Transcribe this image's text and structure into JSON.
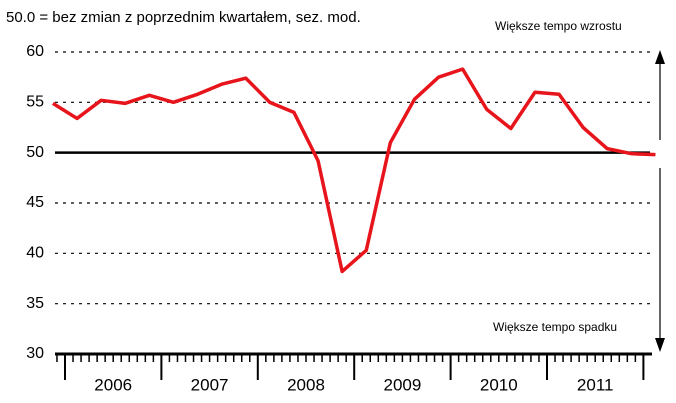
{
  "chart_data": {
    "type": "line",
    "title": "50.0 = bez zmian z poprzednim kwartałem, sez. mod.",
    "annotations": [
      "Większe tempo wzrostu",
      "Większe tempo spadku"
    ],
    "year_labels": [
      "2006",
      "2007",
      "2008",
      "2009",
      "2010",
      "2011"
    ],
    "categories": [
      null,
      null,
      null,
      null,
      null,
      null,
      null,
      null,
      null,
      null,
      null,
      null,
      null,
      null,
      null,
      null,
      null,
      null,
      null,
      null,
      null,
      null,
      null,
      null,
      null,
      null
    ],
    "series": [
      {
        "name": null,
        "color": "#e8141b",
        "values": [
          54.9,
          53.4,
          55.2,
          54.9,
          55.7,
          55.0,
          55.8,
          56.8,
          57.4,
          55.0,
          54.0,
          49.2,
          38.2,
          40.3,
          51.0,
          55.3,
          57.5,
          58.3,
          54.3,
          52.4,
          56.0,
          55.8,
          52.5,
          50.4,
          49.9,
          49.8
        ]
      }
    ],
    "ylim": [
      30,
      60
    ],
    "yticks": [
      30,
      35,
      40,
      45,
      50,
      55,
      60
    ],
    "reference_line": 50,
    "grid": true
  }
}
